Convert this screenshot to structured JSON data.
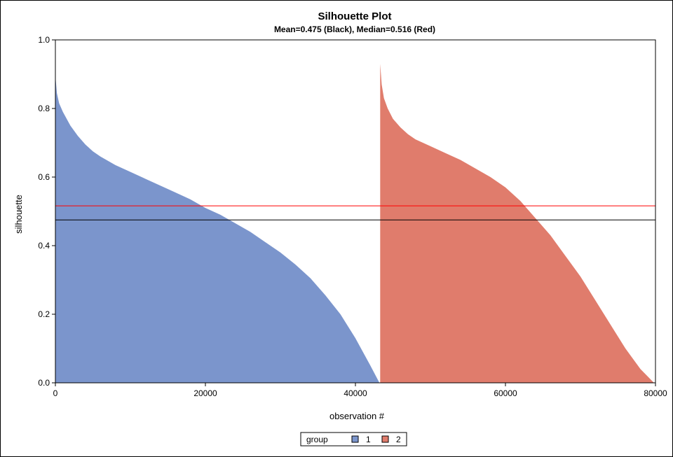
{
  "chart_data": {
    "type": "area",
    "title": "Silhouette Plot",
    "subtitle": "Mean=0.475 (Black), Median=0.516 (Red)",
    "xlabel": "observation #",
    "ylabel": "silhouette",
    "xlim": [
      0,
      80000
    ],
    "ylim": [
      0,
      1.0
    ],
    "xticks": [
      0,
      20000,
      40000,
      60000,
      80000
    ],
    "yticks": [
      "0.0",
      "0.2",
      "0.4",
      "0.6",
      "0.8",
      "1.0"
    ],
    "grid": false,
    "legend": {
      "title": "group",
      "position": "bottom-center"
    },
    "series": [
      {
        "name": "1",
        "color": "#7b95cc",
        "x": [
          0,
          200,
          500,
          1000,
          2000,
          3000,
          4000,
          5000,
          6000,
          8000,
          10000,
          12000,
          14000,
          16000,
          18000,
          20000,
          22000,
          24000,
          26000,
          28000,
          30000,
          32000,
          34000,
          36000,
          38000,
          40000,
          42000,
          43200
        ],
        "values": [
          0.895,
          0.845,
          0.815,
          0.79,
          0.75,
          0.72,
          0.695,
          0.675,
          0.66,
          0.635,
          0.615,
          0.595,
          0.575,
          0.555,
          0.535,
          0.51,
          0.49,
          0.465,
          0.44,
          0.41,
          0.38,
          0.345,
          0.305,
          0.255,
          0.2,
          0.13,
          0.05,
          0.0
        ]
      },
      {
        "name": "2",
        "color": "#e07c6c",
        "x": [
          43300,
          43500,
          43800,
          44300,
          45000,
          46000,
          47000,
          48000,
          50000,
          52000,
          54000,
          56000,
          58000,
          60000,
          62000,
          64000,
          66000,
          68000,
          70000,
          72000,
          74000,
          76000,
          78000,
          79800
        ],
        "values": [
          0.93,
          0.87,
          0.83,
          0.8,
          0.77,
          0.745,
          0.725,
          0.71,
          0.69,
          0.67,
          0.65,
          0.625,
          0.6,
          0.57,
          0.53,
          0.48,
          0.43,
          0.37,
          0.31,
          0.24,
          0.17,
          0.1,
          0.04,
          0.0
        ]
      }
    ],
    "reference_lines": [
      {
        "label": "Mean",
        "value": 0.475,
        "color": "#000000"
      },
      {
        "label": "Median",
        "value": 0.516,
        "color": "#ff0000"
      }
    ]
  }
}
